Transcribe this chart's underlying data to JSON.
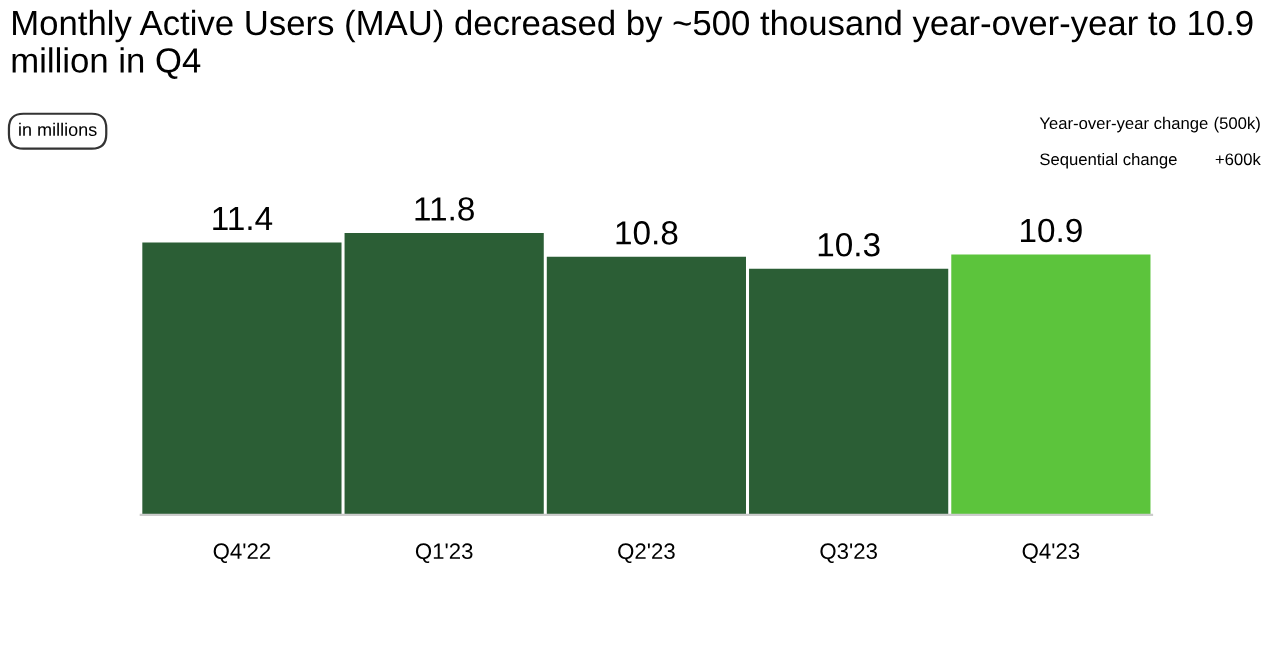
{
  "chart_data": {
    "type": "bar",
    "title": "Monthly Active Users (MAU) decreased by ~500 thousand year-over-year to 10.9 million in Q4",
    "categories": [
      "Q4'22",
      "Q1'23",
      "Q2'23",
      "Q3'23",
      "Q4'23"
    ],
    "values": [
      11.4,
      11.8,
      10.8,
      10.3,
      10.9
    ],
    "colors": [
      "#2b5e35",
      "#2b5e35",
      "#2b5e35",
      "#2b5e35",
      "#5cc43c"
    ],
    "data_labels": true,
    "annotations": [
      "in millions",
      "Year-over-year change",
      "(500k)",
      "Sequential change",
      "+600k"
    ]
  }
}
